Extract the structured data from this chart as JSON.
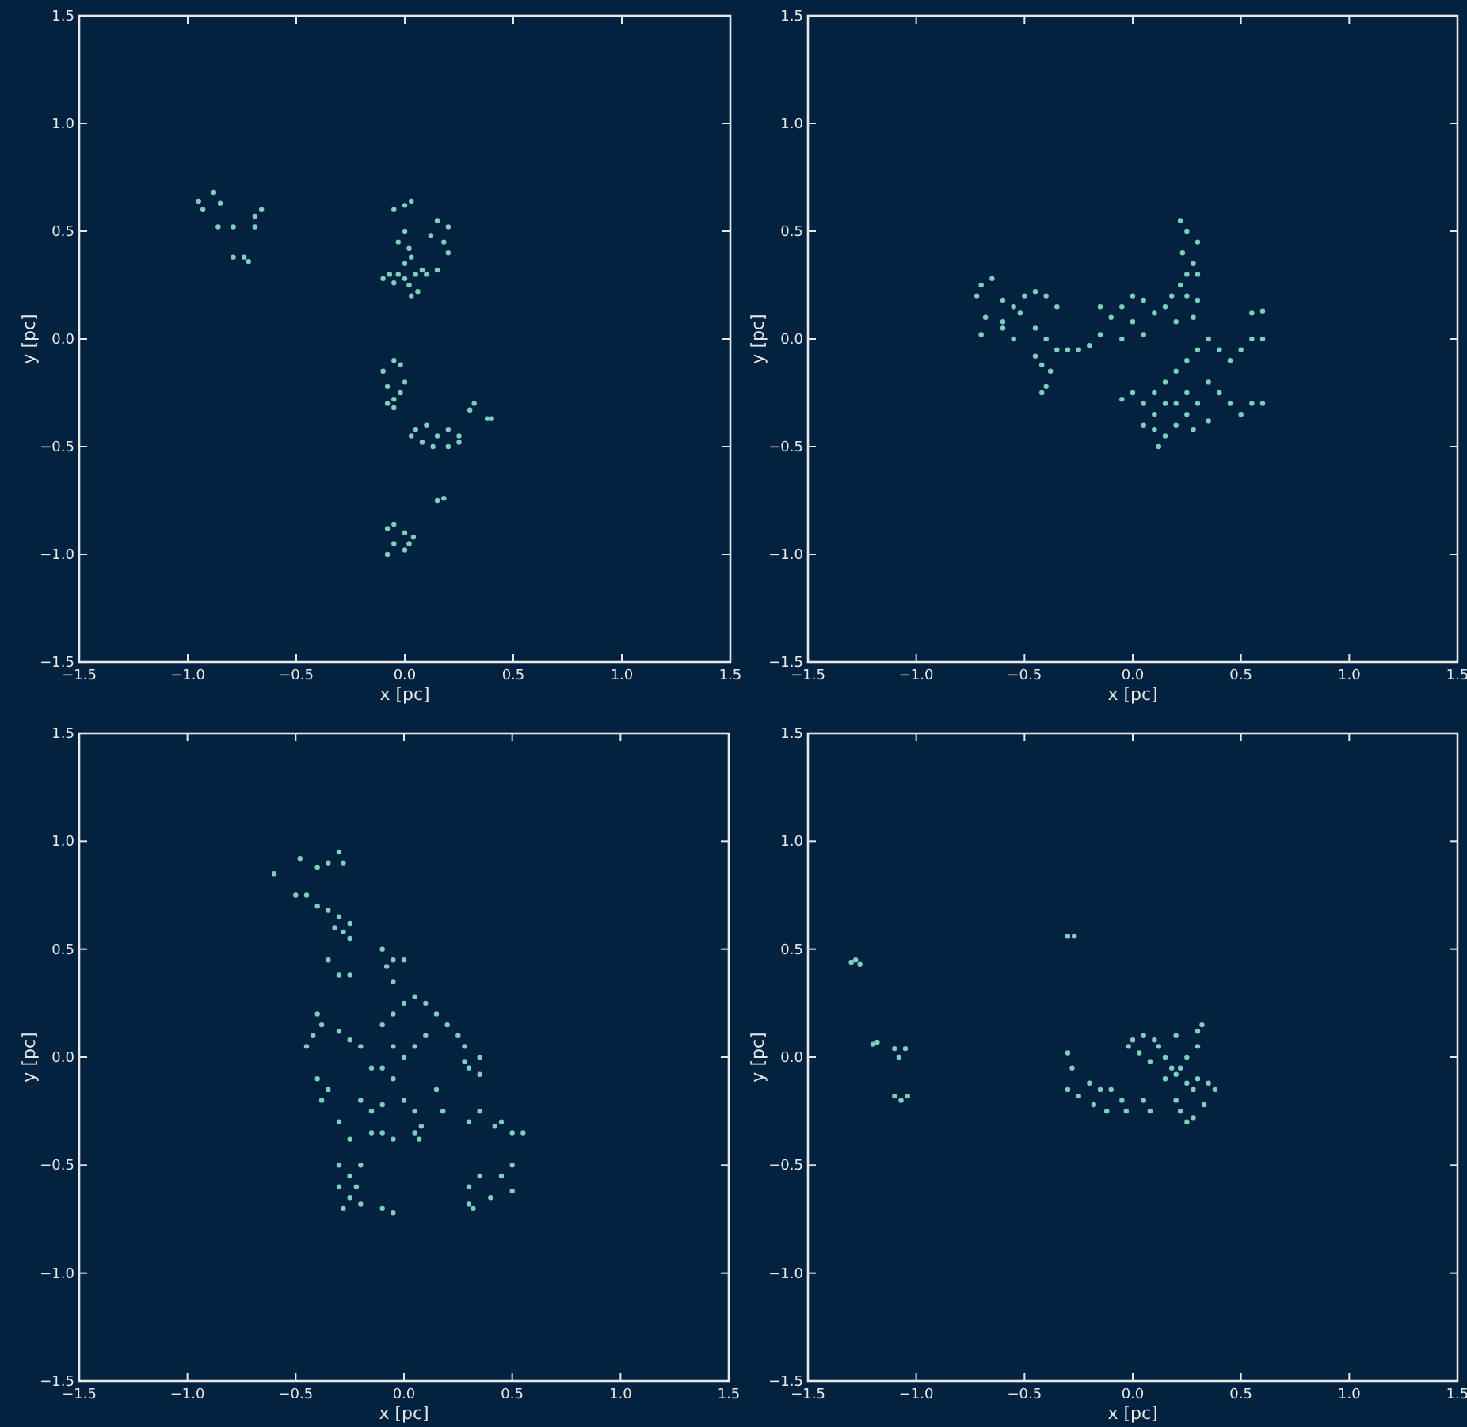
{
  "chart_data": [
    {
      "type": "scatter",
      "xlabel": "x [pc]",
      "ylabel": "y [pc]",
      "color": "#7fcdbb",
      "marker": "circle",
      "grid": false,
      "xlim": [
        -1.5,
        1.5
      ],
      "ylim": [
        -1.5,
        1.5
      ],
      "xticks": [
        {
          "value": -1.5,
          "label": "−1.5"
        },
        {
          "value": -1,
          "label": "−1.0"
        },
        {
          "value": -0.5,
          "label": "−0.5"
        },
        {
          "value": 0,
          "label": "0.0"
        },
        {
          "value": 0.5,
          "label": "0.5"
        },
        {
          "value": 1,
          "label": "1.0"
        },
        {
          "value": 1.5,
          "label": "1.5"
        }
      ],
      "yticks": [
        {
          "value": -1.5,
          "label": "−1.5"
        },
        {
          "value": -1,
          "label": "−1.0"
        },
        {
          "value": -0.5,
          "label": "−0.5"
        },
        {
          "value": 0,
          "label": "0.0"
        },
        {
          "value": 0.5,
          "label": "0.5"
        },
        {
          "value": 1,
          "label": "1.0"
        },
        {
          "value": 1.5,
          "label": "1.5"
        }
      ],
      "x": [
        -0.95,
        -0.93,
        -0.88,
        -0.85,
        -0.86,
        -0.79,
        -0.69,
        -0.66,
        -0.69,
        -0.79,
        -0.74,
        -0.72,
        0.0,
        -0.05,
        0.03,
        0.0,
        -0.03,
        0.02,
        0.15,
        0.2,
        0.18,
        0.2,
        0.12,
        0.0,
        0.03,
        -0.1,
        -0.07,
        -0.03,
        0.0,
        0.05,
        0.08,
        0.1,
        0.15,
        0.03,
        0.06,
        -0.05,
        0.02,
        -0.1,
        -0.05,
        -0.02,
        -0.08,
        -0.05,
        -0.02,
        0.0,
        -0.08,
        -0.05,
        0.05,
        0.1,
        0.15,
        0.2,
        0.25,
        0.08,
        0.13,
        0.2,
        0.25,
        0.03,
        0.3,
        0.32,
        0.38,
        0.4,
        0.15,
        0.18,
        -0.08,
        -0.05,
        0.0,
        0.02,
        -0.05,
        -0.08,
        0.0,
        0.04
      ],
      "values": [
        0.64,
        0.6,
        0.68,
        0.63,
        0.52,
        0.52,
        0.57,
        0.6,
        0.52,
        0.38,
        0.38,
        0.36,
        0.62,
        0.6,
        0.64,
        0.5,
        0.45,
        0.42,
        0.55,
        0.52,
        0.45,
        0.4,
        0.48,
        0.35,
        0.38,
        0.28,
        0.3,
        0.3,
        0.28,
        0.3,
        0.32,
        0.3,
        0.32,
        0.2,
        0.22,
        0.26,
        0.25,
        -0.15,
        -0.1,
        -0.12,
        -0.22,
        -0.28,
        -0.25,
        -0.2,
        -0.3,
        -0.32,
        -0.42,
        -0.4,
        -0.45,
        -0.42,
        -0.45,
        -0.48,
        -0.5,
        -0.5,
        -0.48,
        -0.45,
        -0.33,
        -0.3,
        -0.37,
        -0.37,
        -0.75,
        -0.74,
        -0.88,
        -0.86,
        -0.9,
        -0.95,
        -0.95,
        -1.0,
        -0.98,
        -0.92
      ]
    },
    {
      "type": "scatter",
      "xlabel": "x [pc]",
      "ylabel": "y [pc]",
      "color": "#7fcdbb",
      "marker": "circle",
      "grid": false,
      "xlim": [
        -1.5,
        1.5
      ],
      "ylim": [
        -1.5,
        1.5
      ],
      "xticks": [
        {
          "value": -1.5,
          "label": "−1.5"
        },
        {
          "value": -1,
          "label": "−1.0"
        },
        {
          "value": -0.5,
          "label": "−0.5"
        },
        {
          "value": 0,
          "label": "0.0"
        },
        {
          "value": 0.5,
          "label": "0.5"
        },
        {
          "value": 1,
          "label": "1.0"
        },
        {
          "value": 1.5,
          "label": "1.5"
        }
      ],
      "yticks": [
        {
          "value": -1.5,
          "label": "−1.5"
        },
        {
          "value": -1,
          "label": "−1.0"
        },
        {
          "value": -0.5,
          "label": "−0.5"
        },
        {
          "value": 0,
          "label": "0.0"
        },
        {
          "value": 0.5,
          "label": "0.5"
        },
        {
          "value": 1,
          "label": "1.0"
        },
        {
          "value": 1.5,
          "label": "1.5"
        }
      ],
      "x": [
        -0.72,
        -0.7,
        -0.65,
        -0.6,
        -0.55,
        -0.5,
        -0.45,
        -0.4,
        -0.35,
        -0.68,
        -0.6,
        -0.52,
        -0.45,
        -0.4,
        -0.35,
        -0.3,
        -0.45,
        -0.42,
        -0.38,
        -0.4,
        -0.42,
        -0.6,
        -0.7,
        -0.55,
        -0.25,
        -0.2,
        -0.15,
        -0.15,
        -0.1,
        -0.05,
        0.0,
        0.05,
        0.0,
        0.05,
        -0.05,
        0.1,
        0.15,
        0.18,
        0.22,
        0.25,
        0.3,
        0.28,
        0.2,
        0.22,
        0.25,
        0.3,
        0.23,
        0.28,
        0.3,
        0.25,
        0.0,
        -0.05,
        0.05,
        0.1,
        0.15,
        0.2,
        0.25,
        0.3,
        0.35,
        0.4,
        0.45,
        0.5,
        0.55,
        0.6,
        0.55,
        0.6,
        0.35,
        0.4,
        0.45,
        0.5,
        0.55,
        0.6,
        0.3,
        0.25,
        0.2,
        0.15,
        0.1,
        0.12,
        0.05,
        0.2,
        0.25,
        0.35,
        0.28,
        0.1,
        0.15
      ],
      "values": [
        0.2,
        0.25,
        0.28,
        0.18,
        0.15,
        0.2,
        0.22,
        0.2,
        0.15,
        0.1,
        0.08,
        0.12,
        0.05,
        0.0,
        -0.05,
        -0.05,
        -0.08,
        -0.12,
        -0.15,
        -0.22,
        -0.25,
        0.05,
        0.02,
        0.0,
        -0.05,
        -0.03,
        0.02,
        0.15,
        0.1,
        0.15,
        0.2,
        0.18,
        0.08,
        0.02,
        0.0,
        0.12,
        0.15,
        0.2,
        0.25,
        0.2,
        0.18,
        0.1,
        0.08,
        0.55,
        0.5,
        0.45,
        0.4,
        0.35,
        0.3,
        0.3,
        -0.25,
        -0.28,
        -0.3,
        -0.25,
        -0.2,
        -0.15,
        -0.1,
        -0.05,
        0.0,
        -0.05,
        -0.1,
        -0.05,
        0.0,
        0.0,
        0.12,
        0.13,
        -0.2,
        -0.25,
        -0.3,
        -0.35,
        -0.3,
        -0.3,
        -0.3,
        -0.35,
        -0.4,
        -0.45,
        -0.42,
        -0.5,
        -0.4,
        -0.3,
        -0.25,
        -0.38,
        -0.42,
        -0.35,
        -0.3
      ]
    },
    {
      "type": "scatter",
      "xlabel": "x [pc]",
      "ylabel": "y [pc]",
      "color": "#7fcdbb",
      "marker": "circle",
      "grid": false,
      "xlim": [
        -1.5,
        1.5
      ],
      "ylim": [
        -1.5,
        1.5
      ],
      "xticks": [
        {
          "value": -1.5,
          "label": "−1.5"
        },
        {
          "value": -1,
          "label": "−1.0"
        },
        {
          "value": -0.5,
          "label": "−0.5"
        },
        {
          "value": 0,
          "label": "0.0"
        },
        {
          "value": 0.5,
          "label": "0.5"
        },
        {
          "value": 1,
          "label": "1.0"
        },
        {
          "value": 1.5,
          "label": "1.5"
        }
      ],
      "yticks": [
        {
          "value": -1.5,
          "label": "−1.5"
        },
        {
          "value": -1,
          "label": "−1.0"
        },
        {
          "value": -0.5,
          "label": "−0.5"
        },
        {
          "value": 0,
          "label": "0.0"
        },
        {
          "value": 0.5,
          "label": "0.5"
        },
        {
          "value": 1,
          "label": "1.0"
        },
        {
          "value": 1.5,
          "label": "1.5"
        }
      ],
      "x": [
        -0.6,
        -0.48,
        -0.4,
        -0.35,
        -0.3,
        -0.28,
        -0.5,
        -0.45,
        -0.4,
        -0.35,
        -0.3,
        -0.25,
        -0.32,
        -0.28,
        -0.25,
        -0.1,
        -0.05,
        -0.08,
        0.0,
        -0.05,
        -0.35,
        -0.3,
        -0.25,
        -0.4,
        -0.38,
        -0.42,
        -0.45,
        -0.3,
        -0.25,
        -0.2,
        -0.1,
        -0.05,
        0.0,
        0.05,
        0.1,
        0.15,
        0.2,
        0.25,
        0.28,
        -0.05,
        0.0,
        0.05,
        0.1,
        -0.15,
        -0.1,
        -0.05,
        0.3,
        0.35,
        0.28,
        0.35,
        -0.4,
        -0.35,
        -0.38,
        -0.2,
        -0.15,
        -0.1,
        0.0,
        0.05,
        0.15,
        0.18,
        -0.3,
        -0.25,
        -0.15,
        -0.1,
        -0.05,
        0.05,
        0.08,
        0.07,
        0.3,
        0.35,
        0.45,
        0.5,
        0.55,
        0.42,
        -0.3,
        -0.25,
        -0.2,
        -0.3,
        -0.25,
        -0.22,
        -0.28,
        -0.2,
        -0.1,
        -0.05,
        0.3,
        0.35,
        0.3,
        0.4,
        0.45,
        0.5,
        0.5,
        0.32
      ],
      "values": [
        0.85,
        0.92,
        0.88,
        0.9,
        0.95,
        0.9,
        0.75,
        0.75,
        0.7,
        0.68,
        0.65,
        0.62,
        0.6,
        0.58,
        0.55,
        0.5,
        0.45,
        0.42,
        0.45,
        0.35,
        0.45,
        0.38,
        0.38,
        0.2,
        0.15,
        0.1,
        0.05,
        0.12,
        0.08,
        0.05,
        0.15,
        0.2,
        0.25,
        0.28,
        0.25,
        0.2,
        0.15,
        0.1,
        0.05,
        0.05,
        0.0,
        0.05,
        0.1,
        -0.05,
        -0.05,
        -0.1,
        -0.05,
        0.0,
        -0.02,
        -0.08,
        -0.1,
        -0.15,
        -0.2,
        -0.2,
        -0.25,
        -0.22,
        -0.2,
        -0.25,
        -0.15,
        -0.25,
        -0.3,
        -0.38,
        -0.35,
        -0.35,
        -0.38,
        -0.35,
        -0.32,
        -0.38,
        -0.3,
        -0.25,
        -0.3,
        -0.35,
        -0.35,
        -0.32,
        -0.5,
        -0.55,
        -0.5,
        -0.6,
        -0.65,
        -0.6,
        -0.7,
        -0.68,
        -0.7,
        -0.72,
        -0.6,
        -0.55,
        -0.68,
        -0.65,
        -0.55,
        -0.5,
        -0.62,
        -0.7
      ]
    },
    {
      "type": "scatter",
      "xlabel": "x [pc]",
      "ylabel": "y [pc]",
      "color": "#7fcdbb",
      "marker": "circle",
      "grid": false,
      "xlim": [
        -1.5,
        1.5
      ],
      "ylim": [
        -1.5,
        1.5
      ],
      "xticks": [
        {
          "value": -1.5,
          "label": "−1.5"
        },
        {
          "value": -1,
          "label": "−1.0"
        },
        {
          "value": -0.5,
          "label": "−0.5"
        },
        {
          "value": 0,
          "label": "0.0"
        },
        {
          "value": 0.5,
          "label": "0.5"
        },
        {
          "value": 1,
          "label": "1.0"
        },
        {
          "value": 1.5,
          "label": "1.5"
        }
      ],
      "yticks": [
        {
          "value": -1.5,
          "label": "−1.5"
        },
        {
          "value": -1,
          "label": "−1.0"
        },
        {
          "value": -0.5,
          "label": "−0.5"
        },
        {
          "value": 0,
          "label": "0.0"
        },
        {
          "value": 0.5,
          "label": "0.5"
        },
        {
          "value": 1,
          "label": "1.0"
        },
        {
          "value": 1.5,
          "label": "1.5"
        }
      ],
      "x": [
        -1.3,
        -1.28,
        -1.26,
        -0.3,
        -0.27,
        -1.2,
        -1.18,
        -1.1,
        -1.08,
        -1.05,
        -1.1,
        -1.07,
        -1.04,
        -0.3,
        -0.28,
        -0.3,
        -0.25,
        -0.2,
        -0.15,
        -0.1,
        -0.05,
        -0.03,
        -0.18,
        -0.12,
        0.0,
        0.05,
        0.1,
        0.12,
        0.15,
        0.03,
        0.08,
        0.18,
        0.2,
        0.22,
        0.25,
        0.28,
        0.3,
        0.15,
        0.25,
        0.3,
        0.32,
        0.3,
        0.35,
        0.38,
        0.33,
        0.2,
        0.22,
        0.25,
        0.28,
        0.2,
        0.08,
        0.05,
        -0.02
      ],
      "values": [
        0.44,
        0.45,
        0.43,
        0.56,
        0.56,
        0.06,
        0.07,
        0.04,
        0.0,
        0.04,
        -0.18,
        -0.2,
        -0.18,
        0.02,
        -0.05,
        -0.15,
        -0.18,
        -0.12,
        -0.15,
        -0.15,
        -0.2,
        -0.25,
        -0.22,
        -0.25,
        0.08,
        0.1,
        0.08,
        0.05,
        0.0,
        0.02,
        -0.02,
        -0.05,
        -0.08,
        -0.05,
        -0.12,
        -0.15,
        -0.1,
        -0.1,
        0.0,
        0.12,
        0.15,
        0.05,
        -0.12,
        -0.15,
        -0.22,
        -0.2,
        -0.25,
        -0.3,
        -0.28,
        0.1,
        -0.25,
        -0.2,
        0.05
      ]
    }
  ]
}
